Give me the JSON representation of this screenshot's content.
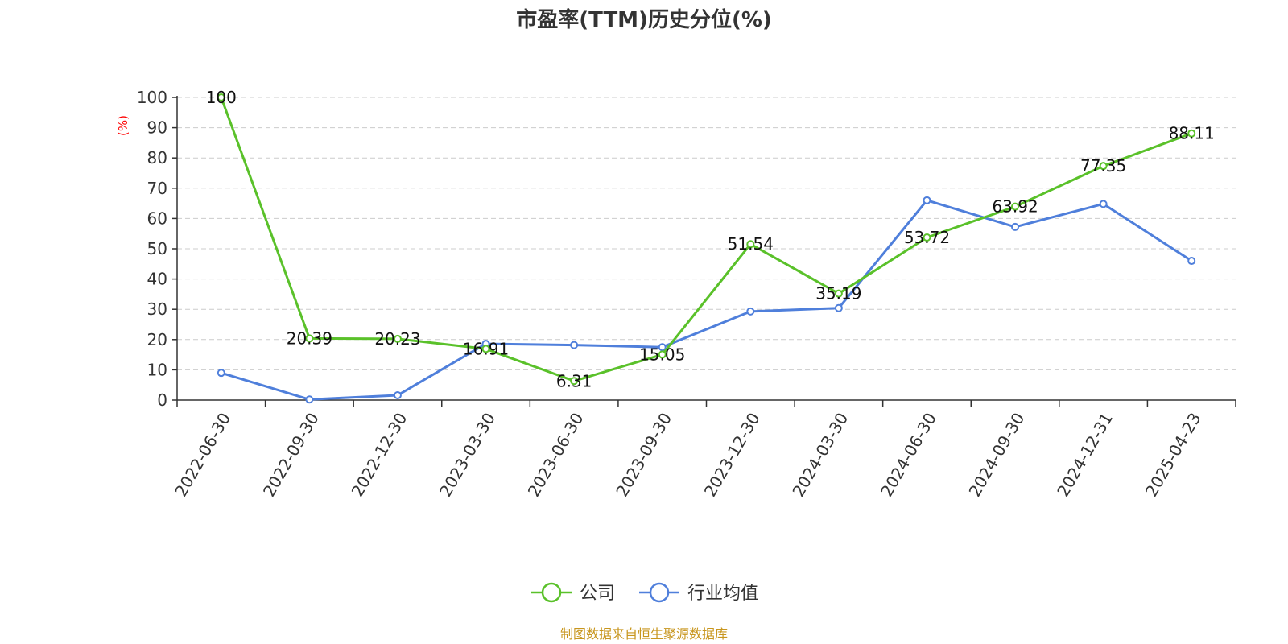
{
  "chart_data": {
    "type": "line",
    "title": "市盈率(TTM)历史分位(%)",
    "ylabel": "(%)",
    "ylim": [
      0,
      100
    ],
    "yticks": [
      0,
      10,
      20,
      30,
      40,
      50,
      60,
      70,
      80,
      90,
      100
    ],
    "categories": [
      "2022-06-30",
      "2022-09-30",
      "2022-12-30",
      "2023-03-30",
      "2023-06-30",
      "2023-09-30",
      "2023-12-30",
      "2024-03-30",
      "2024-06-30",
      "2024-09-30",
      "2024-12-31",
      "2025-04-23"
    ],
    "grid": true,
    "legend_position": "bottom",
    "series": [
      {
        "name": "公司",
        "color": "#5ac12a",
        "values": [
          100,
          20.39,
          20.23,
          16.91,
          6.31,
          15.05,
          51.54,
          35.19,
          53.72,
          63.92,
          77.35,
          88.11
        ],
        "labels": [
          "100",
          "20.39",
          "20.23",
          "16.91",
          "6.31",
          "15.05",
          "51.54",
          "35.19",
          "53.72",
          "63.92",
          "77.35",
          "88.11"
        ]
      },
      {
        "name": "行业均值",
        "color": "#4f7fdb",
        "values": [
          9,
          0.2,
          1.6,
          18.6,
          18.2,
          17.5,
          29.3,
          30.4,
          66,
          57.2,
          64.8,
          46
        ]
      }
    ],
    "source": "制图数据来自恒生聚源数据库"
  }
}
